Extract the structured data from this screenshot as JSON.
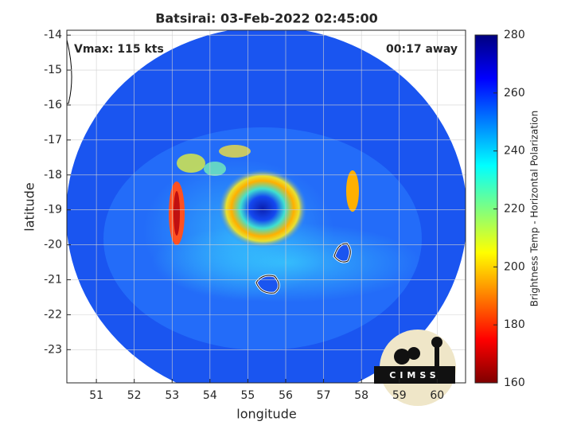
{
  "chart_data": {
    "type": "image",
    "title": "Batsirai: 03-Feb-2022 02:45:00",
    "annotations": [
      "Vmax: 115 kts",
      "00:17 away"
    ],
    "x_label": "longitude",
    "y_label": "latitude",
    "xlim": [
      50.22,
      60.75
    ],
    "xticks": [
      51,
      52,
      53,
      54,
      55,
      56,
      57,
      58,
      59,
      60
    ],
    "ylim": [
      -23.95,
      -13.86
    ],
    "yticks": [
      -14,
      -15,
      -16,
      -17,
      -18,
      -19,
      -20,
      -21,
      -22,
      -23
    ],
    "grid": true,
    "colorbar": {
      "label": "Brightness Temp - Horizontal Polarization",
      "lim": [
        160,
        280
      ],
      "ticks": [
        160,
        180,
        200,
        220,
        240,
        260,
        280
      ]
    },
    "logo": "CIMSS"
  }
}
